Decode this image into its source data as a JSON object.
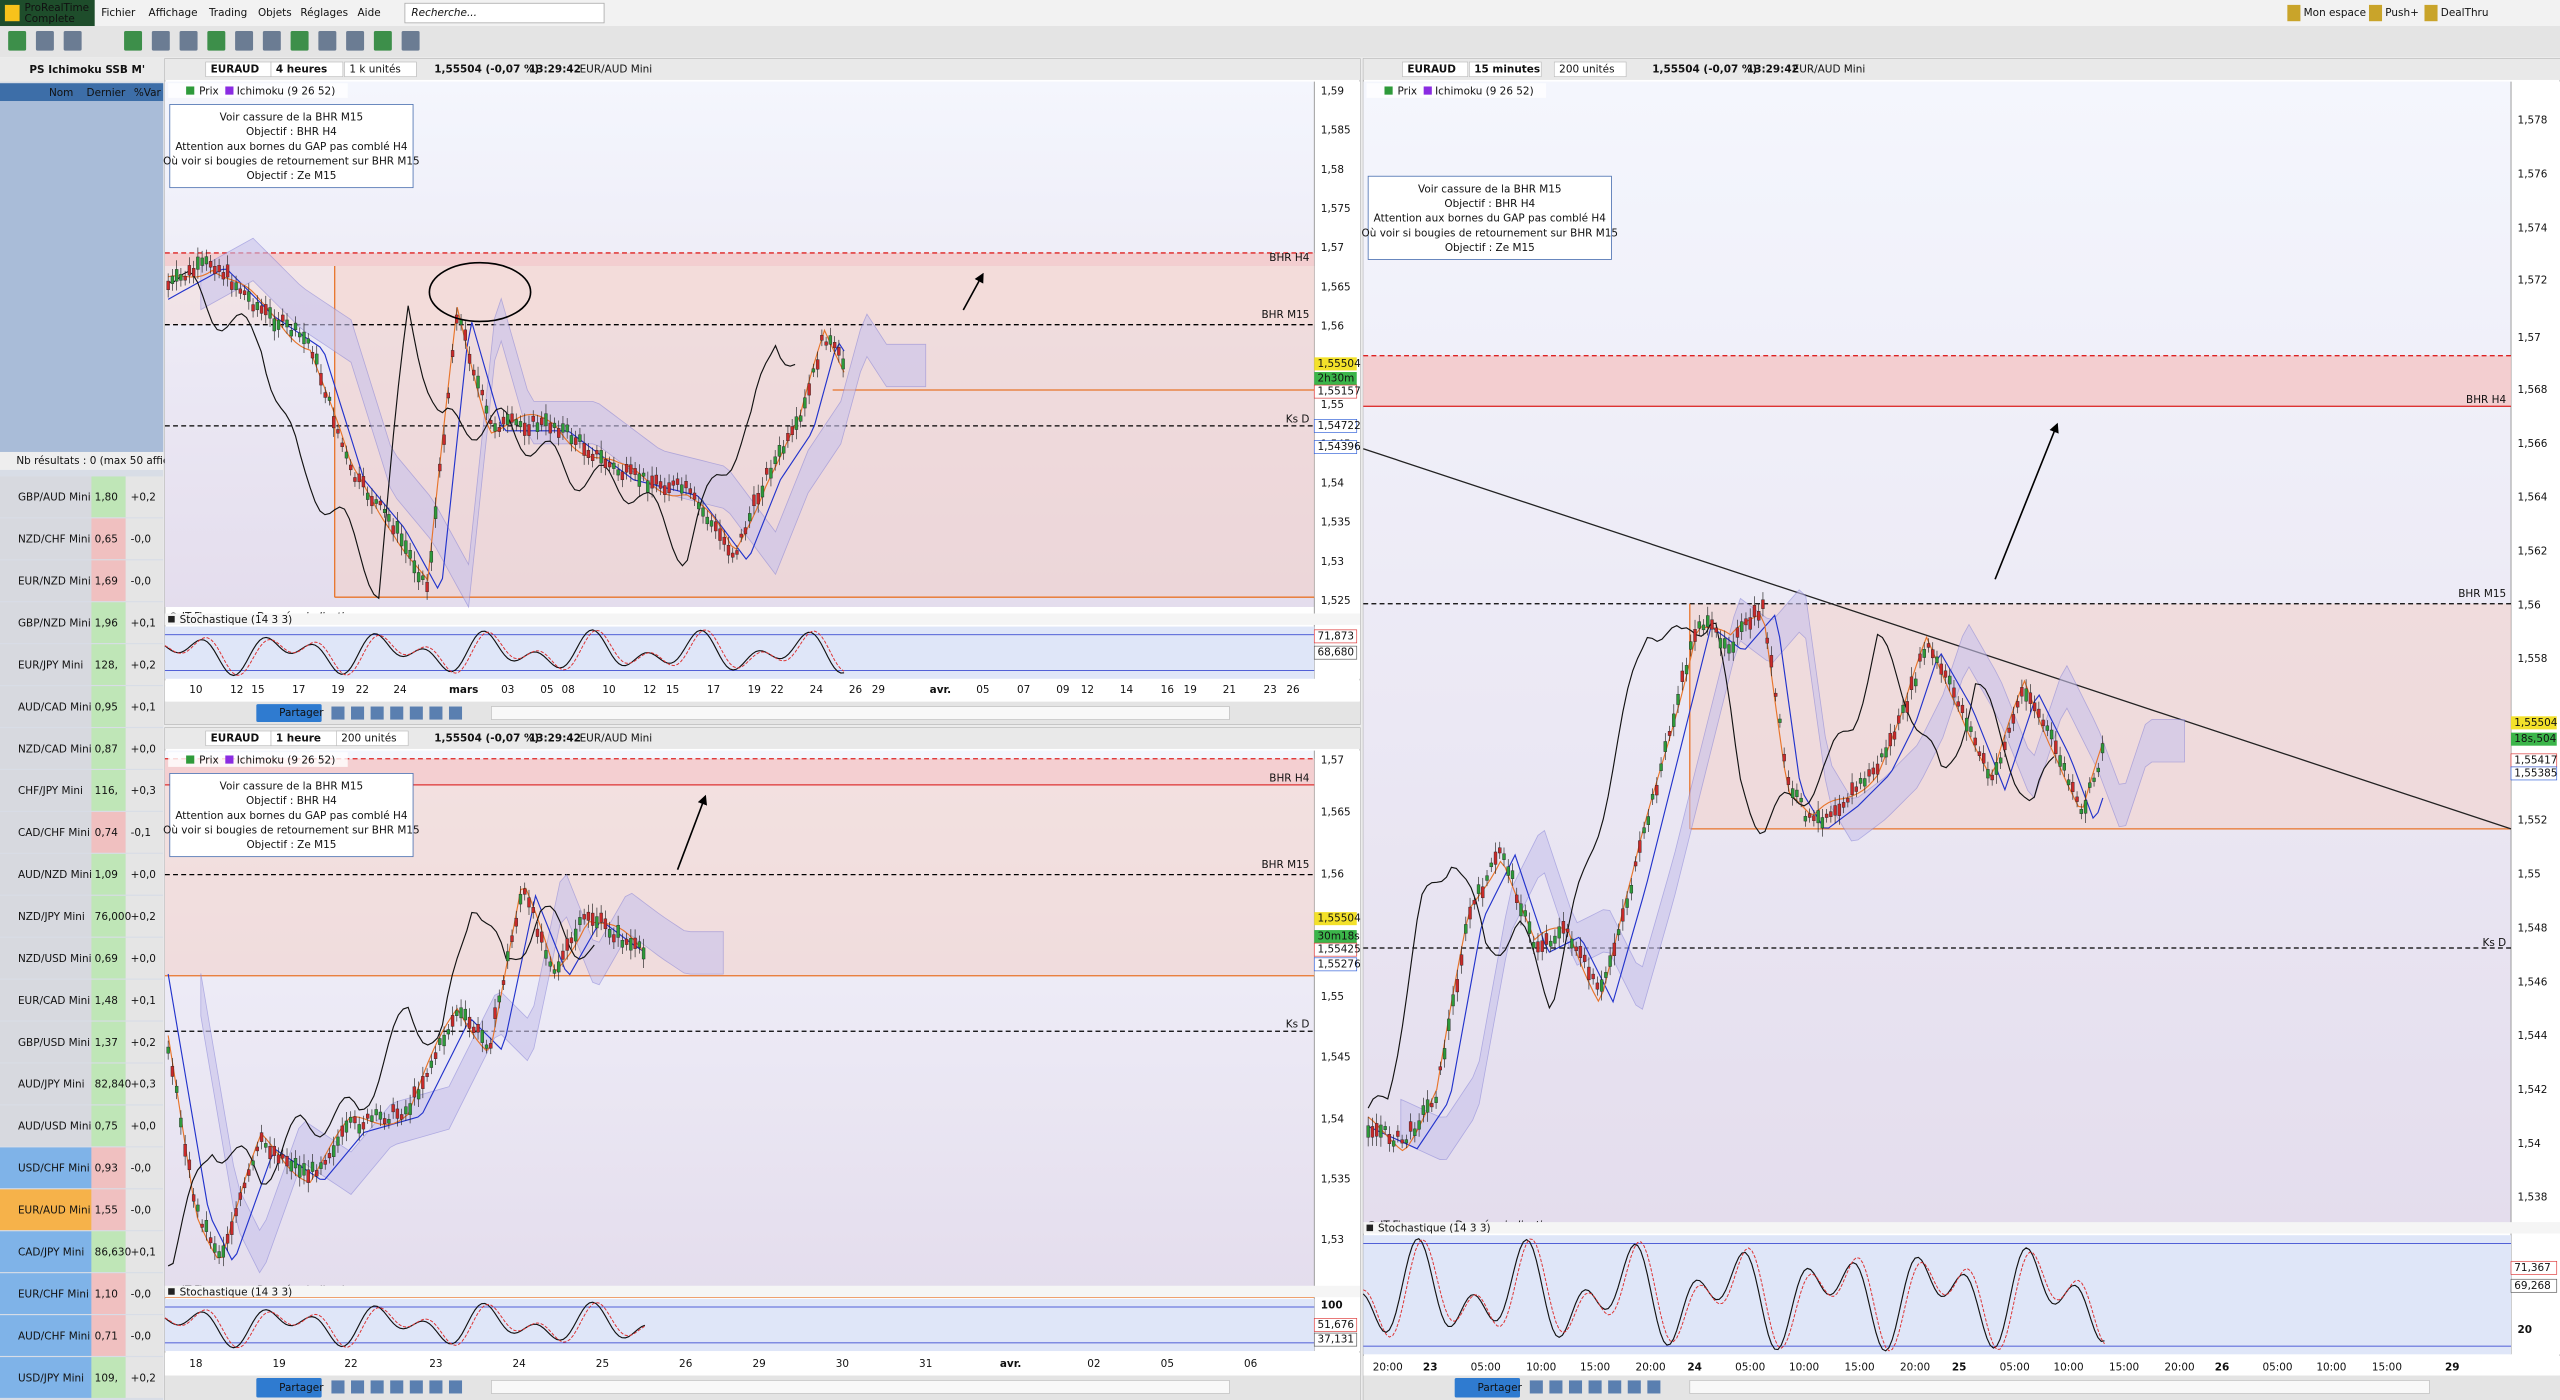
{
  "app": {
    "name": "ProRealTime",
    "edition": "Complete",
    "menu": [
      "Fichier",
      "Affichage",
      "Trading",
      "Objets",
      "Réglages",
      "Aide"
    ],
    "search": "Recherche...",
    "right": [
      "Mon espace",
      "Push+",
      "DealThru"
    ]
  },
  "watchlist": {
    "title": "PS Ichimoku SSB M'",
    "columns": [
      "Nom",
      "Dernier",
      "%Var"
    ],
    "results": "Nb résultats : 0 (max 50 affic",
    "rows": [
      [
        "GBP/AUD Mini",
        "1,80",
        "+0,2"
      ],
      [
        "NZD/CHF Mini",
        "0,65",
        "-0,0"
      ],
      [
        "EUR/NZD Mini",
        "1,69",
        "-0,0"
      ],
      [
        "GBP/NZD Mini",
        "1,96",
        "+0,1"
      ],
      [
        "EUR/JPY Mini",
        "128,",
        "+0,2"
      ],
      [
        "AUD/CAD Mini",
        "0,95",
        "+0,1"
      ],
      [
        "NZD/CAD Mini",
        "0,87",
        "+0,0"
      ],
      [
        "CHF/JPY Mini",
        "116,",
        "+0,3"
      ],
      [
        "CAD/CHF Mini",
        "0,74",
        "-0,1"
      ],
      [
        "AUD/NZD Mini",
        "1,09",
        "+0,0"
      ],
      [
        "NZD/JPY Mini",
        "76,000",
        "+0,2"
      ],
      [
        "NZD/USD Mini",
        "0,69",
        "+0,0"
      ],
      [
        "EUR/CAD Mini",
        "1,48",
        "+0,1"
      ],
      [
        "GBP/USD Mini",
        "1,37",
        "+0,2"
      ],
      [
        "AUD/JPY Mini",
        "82,840",
        "+0,3"
      ],
      [
        "AUD/USD Mini",
        "0,75",
        "+0,0"
      ],
      [
        "USD/CHF Mini",
        "0,93",
        "-0,0"
      ],
      [
        "EUR/AUD Mini",
        "1,55",
        "-0,0"
      ],
      [
        "CAD/JPY Mini",
        "86,630",
        "+0,1"
      ],
      [
        "EUR/CHF Mini",
        "1,10",
        "-0,0"
      ],
      [
        "AUD/CHF Mini",
        "0,71",
        "-0,0"
      ],
      [
        "USD/JPY Mini",
        "109,",
        "+0,2"
      ]
    ]
  },
  "charts": [
    {
      "symbol": "EURAUD",
      "timeframe": "4 heures",
      "units": "1 k unités",
      "price": "1,55504 (-0,07 %)",
      "time": "13:29:42",
      "instrument": "EUR/AUD Mini",
      "legend": [
        "Prix",
        "Ichimoku (9 26 52)"
      ],
      "note": [
        "Voir cassure de la BHR M15",
        "Objectif : BHR H4",
        "Attention aux bornes du GAP pas comblé H4",
        "Où voir si bougies de retournement sur BHR M15",
        "Objectif : Ze M15"
      ],
      "levels": [
        "BHR H4",
        "BHR M15",
        "Ks D"
      ],
      "yaxis": [
        "1,59",
        "1,585",
        "1,58",
        "1,575",
        "1,57",
        "1,565",
        "1,56",
        "1,555",
        "1,55",
        "1,545",
        "1,54",
        "1,535",
        "1,53",
        "1,525"
      ],
      "price_tags": [
        "1,55504",
        "2h30m",
        "1,55157",
        "1,54722",
        "1,54396"
      ],
      "xaxis": [
        "10",
        "12",
        "15",
        "17",
        "19",
        "22",
        "24",
        "mars",
        "03",
        "05",
        "08",
        "10",
        "12",
        "15",
        "17",
        "19",
        "22",
        "24",
        "26",
        "29",
        "avr.",
        "05",
        "07",
        "09",
        "12",
        "14",
        "16",
        "19",
        "21",
        "23",
        "26"
      ],
      "source": "© IT-Finance.com",
      "source_note": "Données indicatives",
      "stoch_title": "Stochastique (14 3 3)",
      "stoch_axis": [],
      "stoch_values": [
        "71,873",
        "68,680"
      ],
      "share": "Partager"
    },
    {
      "symbol": "EURAUD",
      "timeframe": "1 heure",
      "units": "200 unités",
      "price": "1,55504 (-0,07 %)",
      "time": "13:29:42",
      "instrument": "EUR/AUD Mini",
      "legend": [
        "Prix",
        "Ichimoku (9 26 52)"
      ],
      "note": [
        "Voir cassure de la BHR M15",
        "Objectif : BHR H4",
        "Attention aux bornes du GAP pas comblé H4",
        "Où voir si bougies de retournement sur BHR M15",
        "Objectif : Ze M15"
      ],
      "levels": [
        "BHR H4",
        "BHR M15",
        "Ks D"
      ],
      "yaxis": [
        "1,57",
        "1,565",
        "1,56",
        "1,55",
        "1,545",
        "1,54",
        "1,535",
        "1,53"
      ],
      "price_tags": [
        "1,55504",
        "30m18s",
        "1,55425",
        "1,55276"
      ],
      "xaxis": [
        "18",
        "19",
        "22",
        "23",
        "24",
        "25",
        "26",
        "29",
        "30",
        "31",
        "avr.",
        "02",
        "05",
        "06"
      ],
      "source": "© IT-Finance.com",
      "source_note": "Données indicatives",
      "stoch_title": "Stochastique (14 3 3)",
      "stoch_axis": [
        "100"
      ],
      "stoch_values": [
        "51,676",
        "37,131"
      ],
      "share": "Partager"
    },
    {
      "symbol": "EURAUD",
      "timeframe": "15 minutes",
      "units": "200 unités",
      "price": "1,55504 (-0,07 %)",
      "time": "13:29:42",
      "instrument": "EUR/AUD Mini",
      "legend": [
        "Prix",
        "Ichimoku (9 26 52)"
      ],
      "note": [
        "Voir cassure de la BHR M15",
        "Objectif : BHR H4",
        "Attention aux bornes du GAP pas comblé H4",
        "Où voir si bougies de retournement sur BHR M15",
        "Objectif : Ze M15"
      ],
      "levels": [
        "BHR H4",
        "BHR M15",
        "Ks D"
      ],
      "yaxis": [
        "1,578",
        "1,576",
        "1,574",
        "1,572",
        "1,57",
        "1,568",
        "1,566",
        "1,564",
        "1,562",
        "1,56",
        "1,558",
        "1,552",
        "1,55",
        "1,548",
        "1,546",
        "1,544",
        "1,542",
        "1,54",
        "1,538"
      ],
      "price_tags": [
        "1,55504",
        "18s,504",
        "1,55417",
        "1,55385"
      ],
      "xaxis": [
        "20:00",
        "23",
        "05:00",
        "10:00",
        "15:00",
        "20:00",
        "24",
        "05:00",
        "10:00",
        "15:00",
        "20:00",
        "25",
        "05:00",
        "10:00",
        "15:00",
        "20:00",
        "26",
        "05:00",
        "10:00",
        "15:00",
        "29"
      ],
      "source": "© IT-Finance.com",
      "source_note": "Données indicatives",
      "stoch_title": "Stochastique (14 3 3)",
      "stoch_axis": [
        "20"
      ],
      "stoch_values": [
        "71,367",
        "69,268"
      ],
      "share": "Partager"
    }
  ]
}
